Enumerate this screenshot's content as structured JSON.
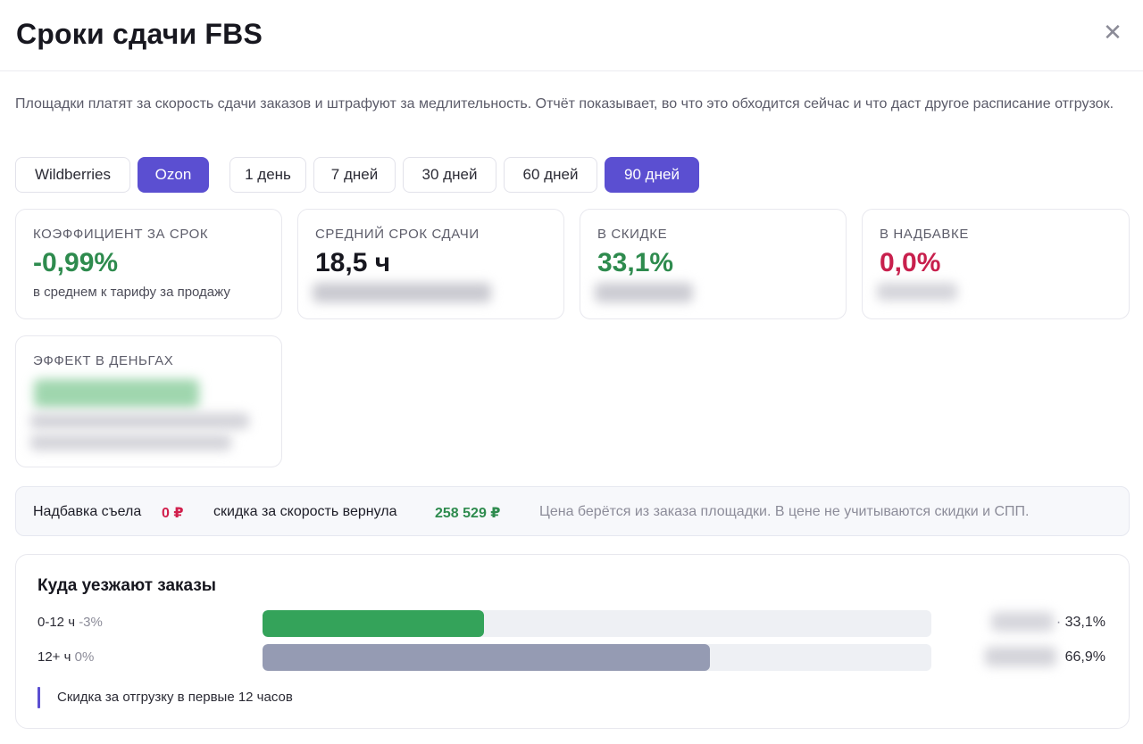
{
  "header": {
    "title": "Сроки сдачи FBS",
    "close_icon": "close-icon"
  },
  "description": "Площадки платят за скорость сдачи заказов и штрафуют за медлительность. Отчёт показывает, во что это обходится сейчас и что даст другое расписание отгрузок.",
  "marketplaces": [
    {
      "label": "Wildberries",
      "active": false
    },
    {
      "label": "Ozon",
      "active": true
    }
  ],
  "periods": [
    {
      "label": "1 день",
      "active": false
    },
    {
      "label": "7 дней",
      "active": false
    },
    {
      "label": "30 дней",
      "active": false
    },
    {
      "label": "60 дней",
      "active": false
    },
    {
      "label": "90 дней",
      "active": true
    }
  ],
  "metrics": {
    "coef": {
      "label": "КОЭФФИЦИЕНТ ЗА СРОК",
      "value": "-0,99%",
      "sub": "в среднем к тарифу за продажу"
    },
    "avg_time": {
      "label": "СРЕДНИЙ СРОК СДАЧИ",
      "value": "18,5 ч"
    },
    "discount": {
      "label": "В СКИДКЕ",
      "value": "33,1%"
    },
    "surcharge": {
      "label": "В НАДБАВКЕ",
      "value": "0,0%"
    },
    "money": {
      "label": "ЭФФЕКТ В ДЕНЬГАХ"
    }
  },
  "note": {
    "surcharge_text": "Надбавка съела",
    "surcharge_value": "0 ₽",
    "discount_text": "скидка за скорость вернула",
    "discount_value": "258 529 ₽",
    "hint": "Цена берётся из заказа площадки. В цене не учитываются скидки и СПП."
  },
  "orders": {
    "title": "Куда уезжают заказы",
    "rows": [
      {
        "label": "0-12 ч",
        "delta": "-3%",
        "share": 0.331,
        "percent": "33,1%",
        "color": "#34a35a"
      },
      {
        "label": "12+ ч",
        "delta": "0%",
        "share": 0.669,
        "percent": "66,9%",
        "color": "#959bb3"
      }
    ],
    "legend": "Скидка за отгрузку в первые 12 часов"
  },
  "colors": {
    "accent": "#5b4fd1",
    "positive": "#2e8b4e",
    "negative": "#c8204d"
  }
}
